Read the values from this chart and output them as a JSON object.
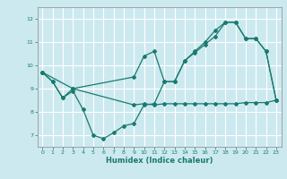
{
  "title": "",
  "xlabel": "Humidex (Indice chaleur)",
  "xlim": [
    -0.5,
    23.5
  ],
  "ylim": [
    6.5,
    12.5
  ],
  "xticks": [
    0,
    1,
    2,
    3,
    4,
    5,
    6,
    7,
    8,
    9,
    10,
    11,
    12,
    13,
    14,
    15,
    16,
    17,
    18,
    19,
    20,
    21,
    22,
    23
  ],
  "yticks": [
    7,
    8,
    9,
    10,
    11,
    12
  ],
  "background_color": "#cce9f0",
  "grid_color": "#ffffff",
  "line_color": "#1a7a6e",
  "line1_x": [
    0,
    1,
    2,
    3,
    4,
    5,
    6,
    7,
    8,
    9,
    10,
    11,
    12,
    13,
    14,
    15,
    16,
    17,
    18,
    19,
    20,
    21,
    22,
    23
  ],
  "line1_y": [
    9.7,
    9.3,
    8.6,
    8.9,
    8.1,
    7.0,
    6.85,
    7.1,
    7.4,
    7.5,
    8.3,
    8.35,
    9.3,
    9.3,
    10.2,
    10.55,
    10.9,
    11.25,
    11.85,
    11.85,
    11.15,
    11.15,
    10.6,
    8.5
  ],
  "line2_x": [
    0,
    1,
    2,
    3,
    9,
    10,
    11,
    12,
    13,
    14,
    15,
    16,
    17,
    18,
    19,
    20,
    21,
    22,
    23
  ],
  "line2_y": [
    9.7,
    9.3,
    8.6,
    9.0,
    8.3,
    8.35,
    8.3,
    8.35,
    8.35,
    8.35,
    8.35,
    8.35,
    8.35,
    8.35,
    8.35,
    8.4,
    8.4,
    8.4,
    8.5
  ],
  "line3_x": [
    0,
    3,
    9,
    10,
    11,
    12,
    13,
    14,
    15,
    16,
    17,
    18,
    19,
    20,
    21,
    22,
    23
  ],
  "line3_y": [
    9.7,
    9.0,
    9.5,
    10.4,
    10.6,
    9.3,
    9.3,
    10.2,
    10.6,
    11.0,
    11.5,
    11.85,
    11.85,
    11.15,
    11.15,
    10.6,
    8.5
  ]
}
